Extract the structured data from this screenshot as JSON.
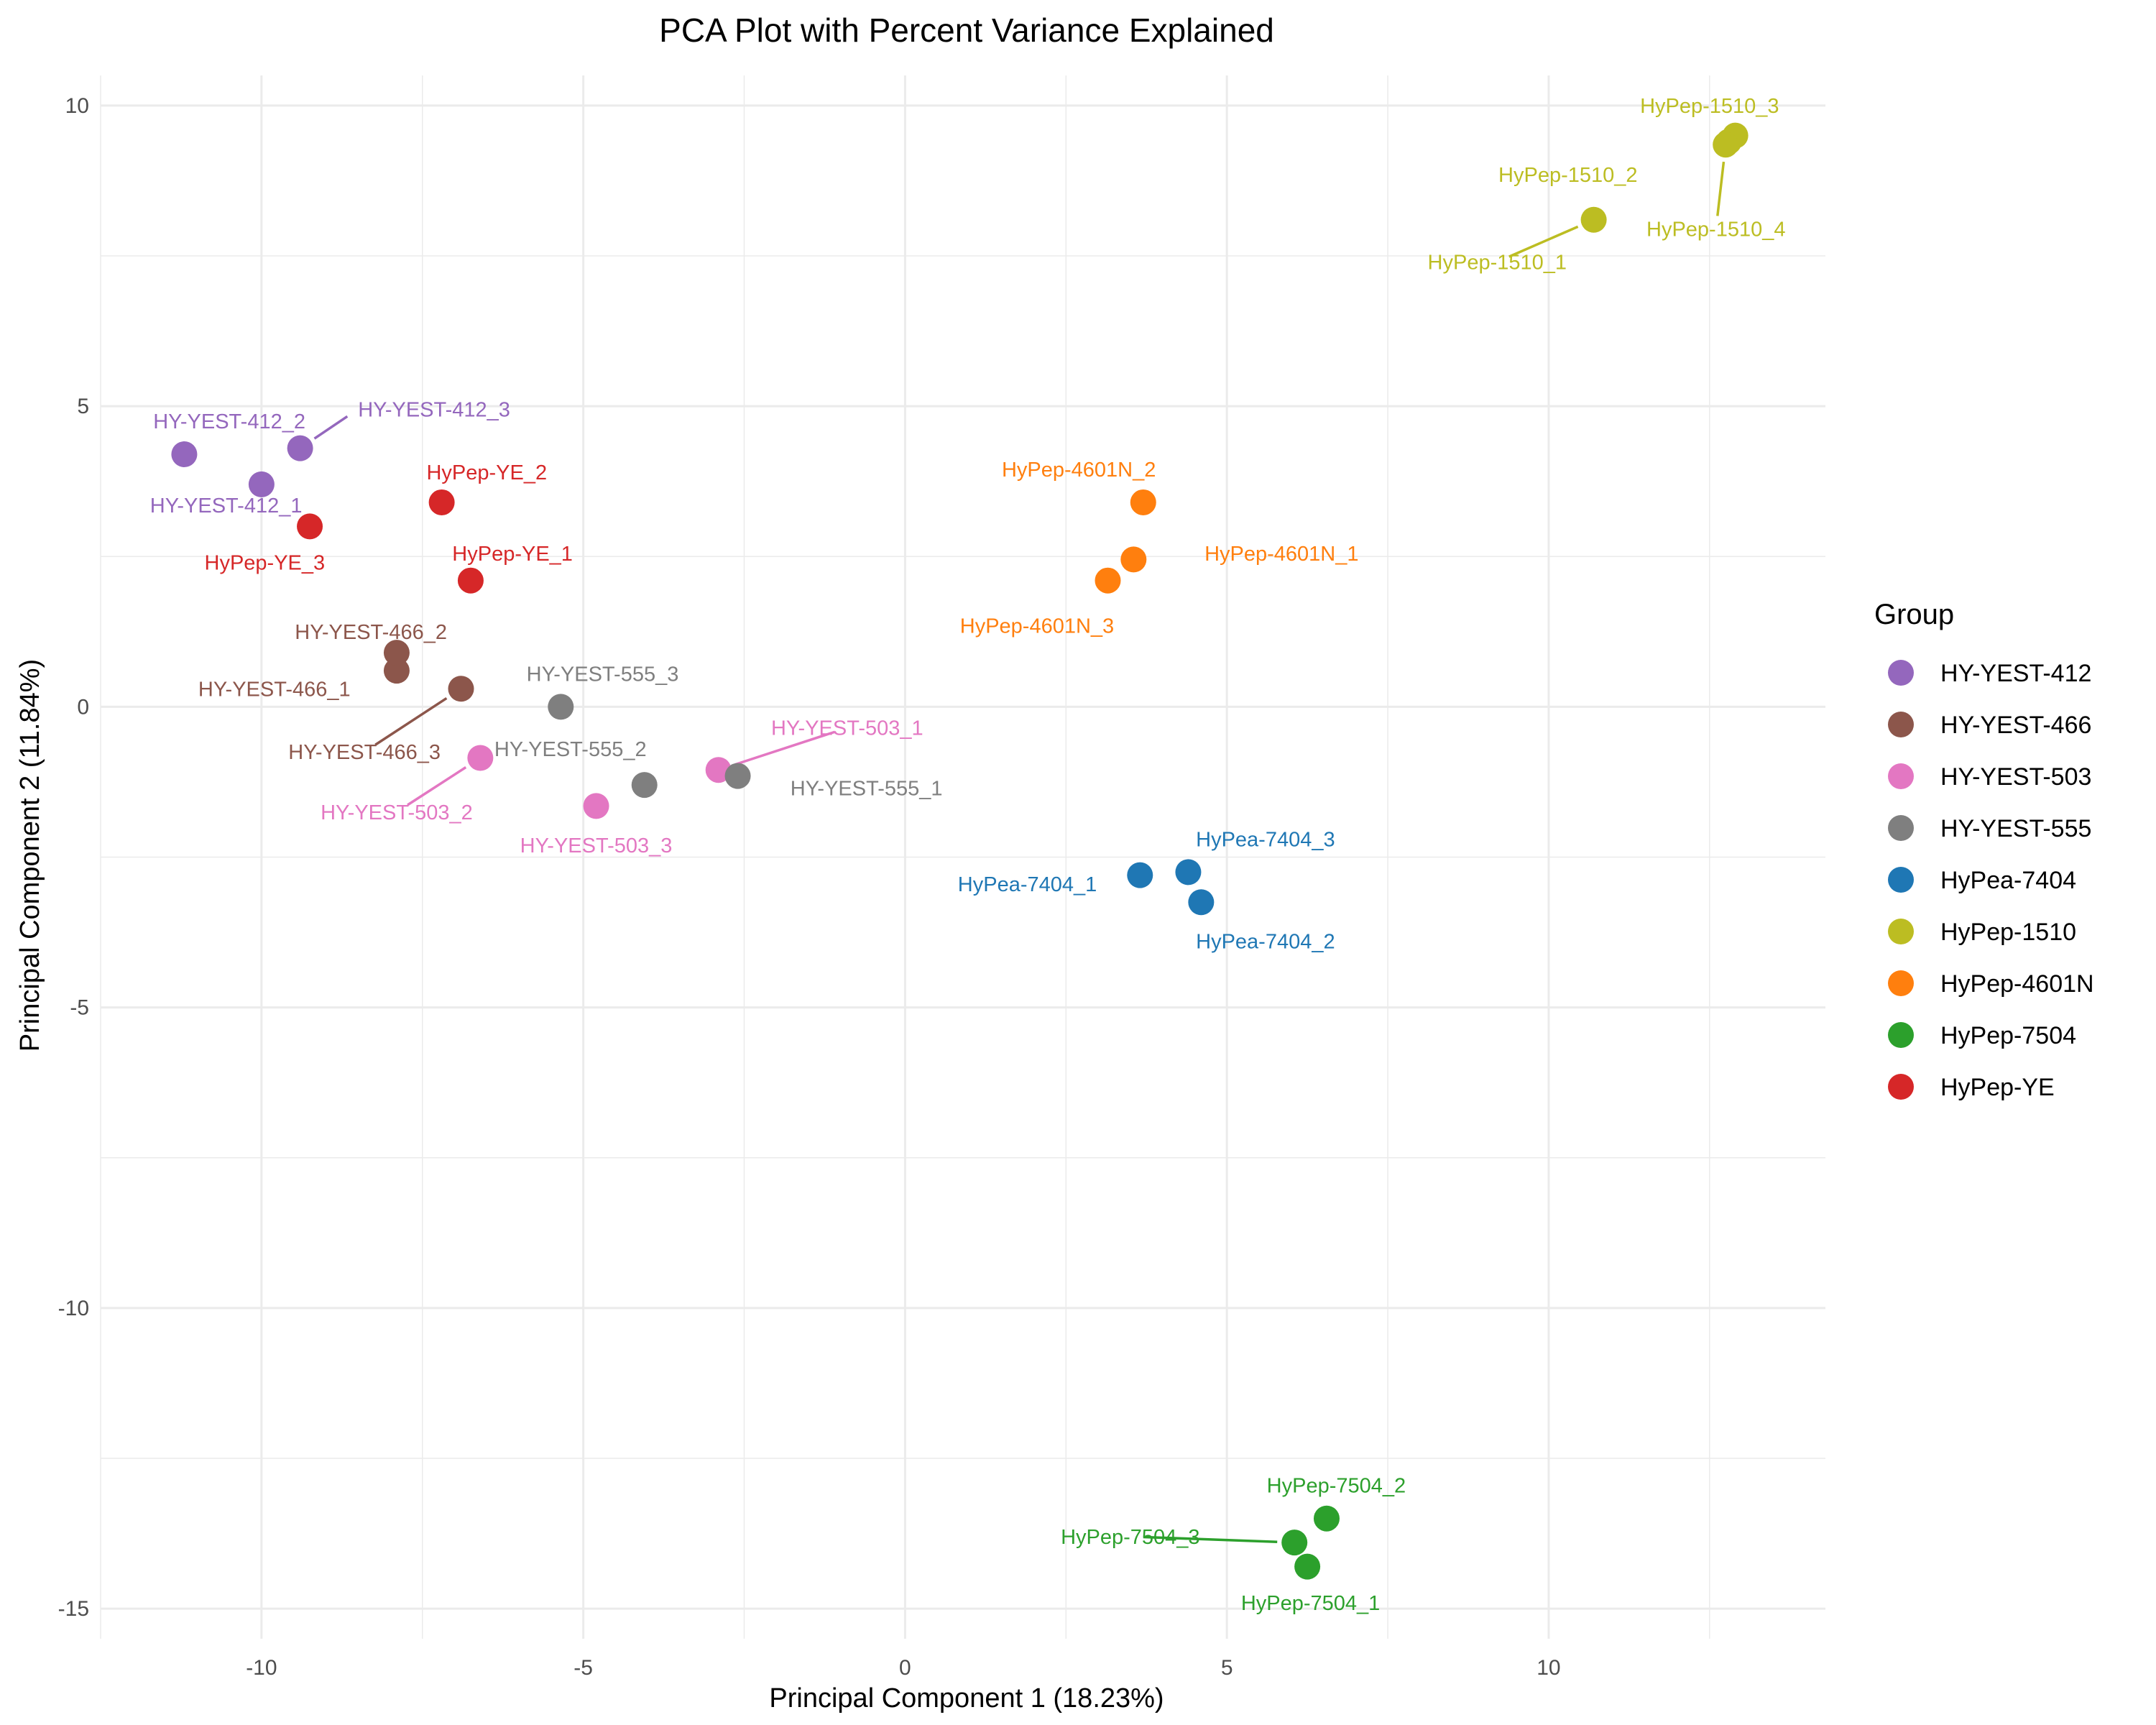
{
  "chart_data": {
    "type": "scatter",
    "title": "PCA Plot with Percent Variance Explained",
    "xlabel": "Principal Component 1 (18.23%)",
    "ylabel": "Principal Component 2 (11.84%)",
    "xlim": [
      -12.5,
      14.3
    ],
    "ylim": [
      -15.5,
      10.5
    ],
    "x_ticks": [
      -10,
      -5,
      0,
      5,
      10
    ],
    "y_ticks": [
      10,
      5,
      0,
      -5,
      -10,
      -15
    ],
    "grid": true,
    "legend": {
      "title": "Group",
      "placement": "right"
    },
    "groups": [
      {
        "name": "HY-YEST-412",
        "color": "#9467bd"
      },
      {
        "name": "HY-YEST-466",
        "color": "#8c564b"
      },
      {
        "name": "HY-YEST-503",
        "color": "#e377c2"
      },
      {
        "name": "HY-YEST-555",
        "color": "#7f7f7f"
      },
      {
        "name": "HyPea-7404",
        "color": "#1f77b4"
      },
      {
        "name": "HyPep-1510",
        "color": "#bcbd22"
      },
      {
        "name": "HyPep-4601N",
        "color": "#ff7f0e"
      },
      {
        "name": "HyPep-7504",
        "color": "#2ca02c"
      },
      {
        "name": "HyPep-YE",
        "color": "#d62728"
      }
    ],
    "points": [
      {
        "label": "HY-YEST-412_1",
        "group": "HY-YEST-412",
        "x": -10.0,
        "y": 3.7,
        "lx": -10.55,
        "ly": 3.35,
        "anchor": "middle"
      },
      {
        "label": "HY-YEST-412_2",
        "group": "HY-YEST-412",
        "x": -11.2,
        "y": 4.2,
        "lx": -10.5,
        "ly": 4.75,
        "anchor": "middle"
      },
      {
        "label": "HY-YEST-412_3",
        "group": "HY-YEST-412",
        "x": -9.4,
        "y": 4.3,
        "lx": -8.5,
        "ly": 4.95,
        "anchor": "start",
        "line": true
      },
      {
        "label": "HY-YEST-466_1",
        "group": "HY-YEST-466",
        "x": -7.9,
        "y": 0.6,
        "lx": -9.8,
        "ly": 0.3,
        "anchor": "middle"
      },
      {
        "label": "HY-YEST-466_2",
        "group": "HY-YEST-466",
        "x": -7.9,
        "y": 0.9,
        "lx": -8.3,
        "ly": 1.25,
        "anchor": "middle"
      },
      {
        "label": "HY-YEST-466_3",
        "group": "HY-YEST-466",
        "x": -6.9,
        "y": 0.3,
        "lx": -8.4,
        "ly": -0.75,
        "anchor": "middle",
        "line": true
      },
      {
        "label": "HY-YEST-503_1",
        "group": "HY-YEST-503",
        "x": -2.9,
        "y": -1.05,
        "lx": -0.9,
        "ly": -0.35,
        "anchor": "middle",
        "line": true
      },
      {
        "label": "HY-YEST-503_2",
        "group": "HY-YEST-503",
        "x": -6.6,
        "y": -0.85,
        "lx": -7.9,
        "ly": -1.75,
        "anchor": "middle",
        "line": true
      },
      {
        "label": "HY-YEST-503_3",
        "group": "HY-YEST-503",
        "x": -4.8,
        "y": -1.65,
        "lx": -4.8,
        "ly": -2.3,
        "anchor": "middle"
      },
      {
        "label": "HY-YEST-555_1",
        "group": "HY-YEST-555",
        "x": -2.6,
        "y": -1.15,
        "lx": -0.6,
        "ly": -1.35,
        "anchor": "middle"
      },
      {
        "label": "HY-YEST-555_2",
        "group": "HY-YEST-555",
        "x": -4.05,
        "y": -1.3,
        "lx": -5.2,
        "ly": -0.7,
        "anchor": "middle"
      },
      {
        "label": "HY-YEST-555_3",
        "group": "HY-YEST-555",
        "x": -5.35,
        "y": 0.0,
        "lx": -4.7,
        "ly": 0.55,
        "anchor": "middle"
      },
      {
        "label": "HyPea-7404_1",
        "group": "HyPea-7404",
        "x": 3.65,
        "y": -2.8,
        "lx": 1.9,
        "ly": -2.95,
        "anchor": "middle"
      },
      {
        "label": "HyPea-7404_2",
        "group": "HyPea-7404",
        "x": 4.6,
        "y": -3.25,
        "lx": 5.6,
        "ly": -3.9,
        "anchor": "middle"
      },
      {
        "label": "HyPea-7404_3",
        "group": "HyPea-7404",
        "x": 4.4,
        "y": -2.75,
        "lx": 5.6,
        "ly": -2.2,
        "anchor": "middle"
      },
      {
        "label": "HyPep-1510_1",
        "group": "HyPep-1510",
        "x": 10.7,
        "y": 8.1,
        "lx": 9.2,
        "ly": 7.4,
        "anchor": "middle",
        "line": true
      },
      {
        "label": "HyPep-1510_2",
        "group": "HyPep-1510",
        "x": 12.8,
        "y": 9.4,
        "lx": 10.3,
        "ly": 8.85,
        "anchor": "middle"
      },
      {
        "label": "HyPep-1510_3",
        "group": "HyPep-1510",
        "x": 12.9,
        "y": 9.5,
        "lx": 12.5,
        "ly": 10.0,
        "anchor": "middle"
      },
      {
        "label": "HyPep-1510_4",
        "group": "HyPep-1510",
        "x": 12.75,
        "y": 9.35,
        "lx": 12.6,
        "ly": 7.95,
        "anchor": "middle",
        "line": true
      },
      {
        "label": "HyPep-4601N_1",
        "group": "HyPep-4601N",
        "x": 3.55,
        "y": 2.45,
        "lx": 5.85,
        "ly": 2.55,
        "anchor": "middle"
      },
      {
        "label": "HyPep-4601N_2",
        "group": "HyPep-4601N",
        "x": 3.7,
        "y": 3.4,
        "lx": 2.7,
        "ly": 3.95,
        "anchor": "middle"
      },
      {
        "label": "HyPep-4601N_3",
        "group": "HyPep-4601N",
        "x": 3.15,
        "y": 2.1,
        "lx": 2.05,
        "ly": 1.35,
        "anchor": "middle"
      },
      {
        "label": "HyPep-7504_1",
        "group": "HyPep-7504",
        "x": 6.25,
        "y": -14.3,
        "lx": 6.3,
        "ly": -14.9,
        "anchor": "middle"
      },
      {
        "label": "HyPep-7504_2",
        "group": "HyPep-7504",
        "x": 6.55,
        "y": -13.5,
        "lx": 6.7,
        "ly": -12.95,
        "anchor": "middle"
      },
      {
        "label": "HyPep-7504_3",
        "group": "HyPep-7504",
        "x": 6.05,
        "y": -13.9,
        "lx": 3.5,
        "ly": -13.8,
        "anchor": "middle",
        "line": true
      },
      {
        "label": "HyPep-YE_1",
        "group": "HyPep-YE",
        "x": -6.75,
        "y": 2.1,
        "lx": -6.1,
        "ly": 2.55,
        "anchor": "middle"
      },
      {
        "label": "HyPep-YE_2",
        "group": "HyPep-YE",
        "x": -7.2,
        "y": 3.4,
        "lx": -6.5,
        "ly": 3.9,
        "anchor": "middle"
      },
      {
        "label": "HyPep-YE_3",
        "group": "HyPep-YE",
        "x": -9.25,
        "y": 3.0,
        "lx": -9.95,
        "ly": 2.4,
        "anchor": "middle"
      }
    ]
  }
}
